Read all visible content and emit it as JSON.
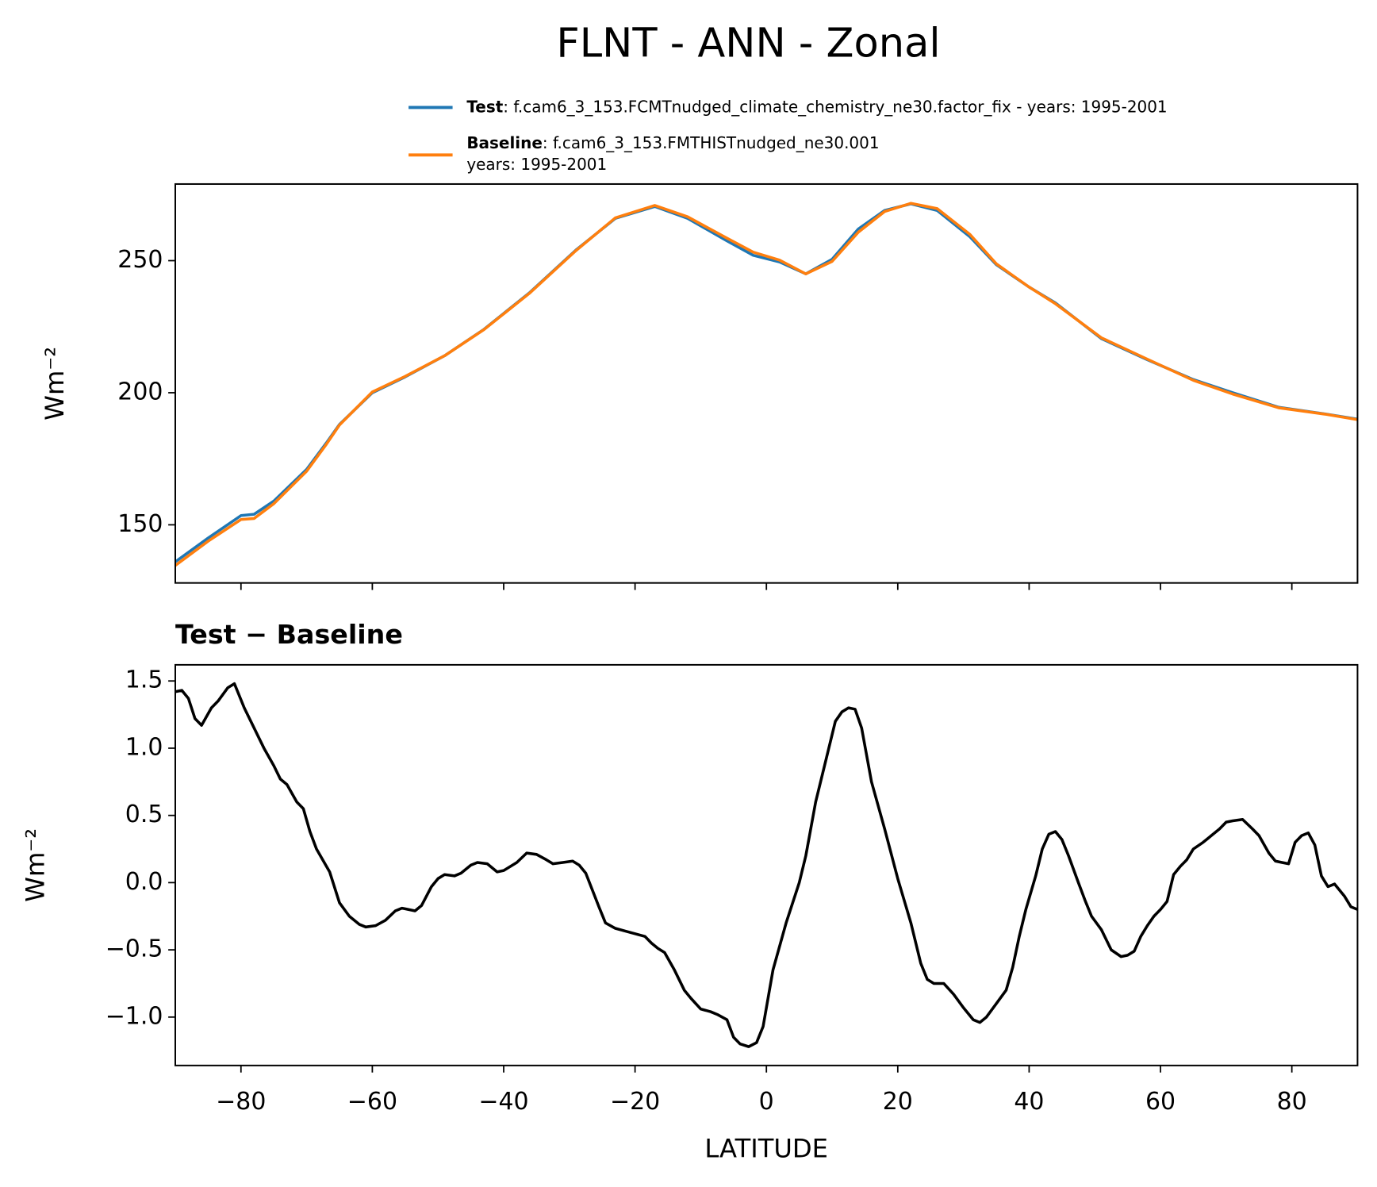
{
  "title": "FLNT - ANN - Zonal",
  "chart_data": [
    {
      "type": "line",
      "ylabel": "Wm⁻²",
      "x": [
        -90,
        -85,
        -80,
        -78,
        -75,
        -70,
        -67,
        -65,
        -60,
        -55,
        -49,
        -43,
        -36,
        -29,
        -23,
        -17,
        -12,
        -6,
        -2,
        2,
        6,
        10,
        14,
        18,
        22,
        26,
        31,
        35,
        40,
        44,
        51,
        58,
        65,
        71,
        78,
        85,
        90
      ],
      "series": [
        {
          "name": "Test",
          "label": ": f.cam6_3_153.FCMTnudged_climate_chemistry_ne30.factor_fix - years: 1995-2001",
          "color": "#1f77b4",
          "values": [
            136,
            145,
            153.5,
            154,
            159,
            171,
            181,
            188,
            200,
            206,
            214,
            224,
            238,
            254,
            266,
            270.5,
            266,
            257.5,
            252,
            249.5,
            245,
            250.5,
            262,
            269,
            271.5,
            269,
            259,
            248.5,
            240,
            234,
            220.5,
            212.5,
            205,
            200,
            194.5,
            192,
            190
          ]
        },
        {
          "name": "Baseline",
          "label": ": f.cam6_3_153.FMTHISTnudged_ne30.001",
          "label2": "years: 1995-2001",
          "color": "#ff7f0e",
          "values": [
            134.6,
            143.8,
            152,
            152.4,
            158,
            170.3,
            180.5,
            187.8,
            200.3,
            206.2,
            214,
            223.9,
            237.8,
            253.8,
            266.2,
            270.9,
            266.6,
            258.5,
            253.2,
            250.2,
            245,
            249.7,
            260.8,
            268.6,
            271.7,
            269.7,
            259.9,
            248.8,
            240,
            233.7,
            220.8,
            212.7,
            204.7,
            199.5,
            194.3,
            191.9,
            189.8
          ]
        }
      ],
      "xlim": [
        -90,
        90
      ],
      "xticks": [
        -80,
        -60,
        -40,
        -20,
        0,
        20,
        40,
        60,
        80
      ],
      "ylim": [
        128,
        279
      ],
      "yticks": [
        150,
        200,
        250
      ]
    },
    {
      "type": "line",
      "title": "Test − Baseline",
      "xlabel": "LATITUDE",
      "ylabel": "Wm⁻²",
      "color": "#000000",
      "x": [
        -90,
        -89,
        -88,
        -87,
        -86,
        -84.5,
        -83.5,
        -82,
        -81,
        -79.5,
        -76.5,
        -75,
        -74,
        -73,
        -71.5,
        -70.5,
        -69.5,
        -68.5,
        -66.5,
        -65,
        -63.5,
        -62,
        -61,
        -59.5,
        -58,
        -56.5,
        -55.5,
        -54.5,
        -53.5,
        -52.5,
        -51,
        -50,
        -49,
        -47.5,
        -46.5,
        -45,
        -44,
        -42.5,
        -41,
        -40,
        -38,
        -36.5,
        -35,
        -33.5,
        -32.5,
        -31,
        -29.5,
        -28.5,
        -27.5,
        -25.5,
        -24.5,
        -23,
        -21.5,
        -20,
        -18.5,
        -17.5,
        -16.5,
        -15.5,
        -14,
        -12.5,
        -11.5,
        -10,
        -8.5,
        -7.5,
        -6,
        -5,
        -4,
        -2.7,
        -1.5,
        -0.5,
        1,
        3,
        5,
        6,
        7.5,
        9,
        10.5,
        11.5,
        12.5,
        13.5,
        14.5,
        16,
        18,
        20,
        22,
        23.5,
        24.5,
        25.5,
        27,
        28.5,
        30,
        31.5,
        32.5,
        33.5,
        35,
        36.5,
        37.5,
        38.5,
        39.5,
        41,
        42,
        43,
        44,
        45,
        46,
        47.5,
        48.5,
        49.5,
        51,
        52.5,
        54,
        55,
        56,
        57,
        58,
        59,
        60,
        61,
        62,
        63,
        64,
        65,
        66.5,
        68,
        69,
        70,
        71,
        72.5,
        74,
        75,
        76.5,
        77.5,
        78.5,
        79.5,
        80.5,
        81.5,
        82.5,
        83.5,
        84.5,
        85.5,
        86.5,
        88,
        89,
        90
      ],
      "values": [
        1.42,
        1.43,
        1.37,
        1.22,
        1.17,
        1.3,
        1.35,
        1.45,
        1.48,
        1.3,
        1.0,
        0.87,
        0.77,
        0.73,
        0.6,
        0.55,
        0.38,
        0.25,
        0.08,
        -0.15,
        -0.25,
        -0.31,
        -0.33,
        -0.32,
        -0.28,
        -0.21,
        -0.19,
        -0.2,
        -0.21,
        -0.17,
        -0.03,
        0.03,
        0.06,
        0.05,
        0.07,
        0.13,
        0.15,
        0.14,
        0.08,
        0.09,
        0.15,
        0.22,
        0.21,
        0.17,
        0.14,
        0.15,
        0.16,
        0.13,
        0.07,
        -0.18,
        -0.3,
        -0.34,
        -0.36,
        -0.38,
        -0.4,
        -0.45,
        -0.49,
        -0.52,
        -0.65,
        -0.8,
        -0.86,
        -0.94,
        -0.96,
        -0.98,
        -1.02,
        -1.15,
        -1.2,
        -1.22,
        -1.19,
        -1.07,
        -0.65,
        -0.3,
        0.0,
        0.2,
        0.6,
        0.9,
        1.2,
        1.27,
        1.3,
        1.29,
        1.15,
        0.75,
        0.4,
        0.03,
        -0.3,
        -0.6,
        -0.72,
        -0.75,
        -0.75,
        -0.83,
        -0.93,
        -1.02,
        -1.04,
        -1.0,
        -0.9,
        -0.8,
        -0.63,
        -0.4,
        -0.2,
        0.05,
        0.25,
        0.36,
        0.38,
        0.32,
        0.2,
        0.0,
        -0.13,
        -0.25,
        -0.35,
        -0.5,
        -0.55,
        -0.54,
        -0.51,
        -0.4,
        -0.32,
        -0.25,
        -0.2,
        -0.14,
        0.06,
        0.12,
        0.17,
        0.25,
        0.3,
        0.36,
        0.4,
        0.45,
        0.46,
        0.47,
        0.4,
        0.35,
        0.22,
        0.16,
        0.15,
        0.14,
        0.3,
        0.35,
        0.37,
        0.28,
        0.05,
        -0.03,
        -0.01,
        -0.1,
        -0.18,
        -0.2
      ],
      "xlim": [
        -90,
        90
      ],
      "xticks": [
        {
          "value": -80,
          "label": "−80"
        },
        {
          "value": -60,
          "label": "−60"
        },
        {
          "value": -40,
          "label": "−40"
        },
        {
          "value": -20,
          "label": "−20"
        },
        0,
        20,
        40,
        60,
        80
      ],
      "ylim": [
        -1.36,
        1.62
      ],
      "yticks": [
        {
          "value": -1,
          "label": "−1.0"
        },
        {
          "value": -0.5,
          "label": "−0.5"
        },
        {
          "value": 0,
          "label": "0.0"
        },
        0.5,
        {
          "value": 1,
          "label": "1.0"
        },
        1.5
      ]
    }
  ]
}
